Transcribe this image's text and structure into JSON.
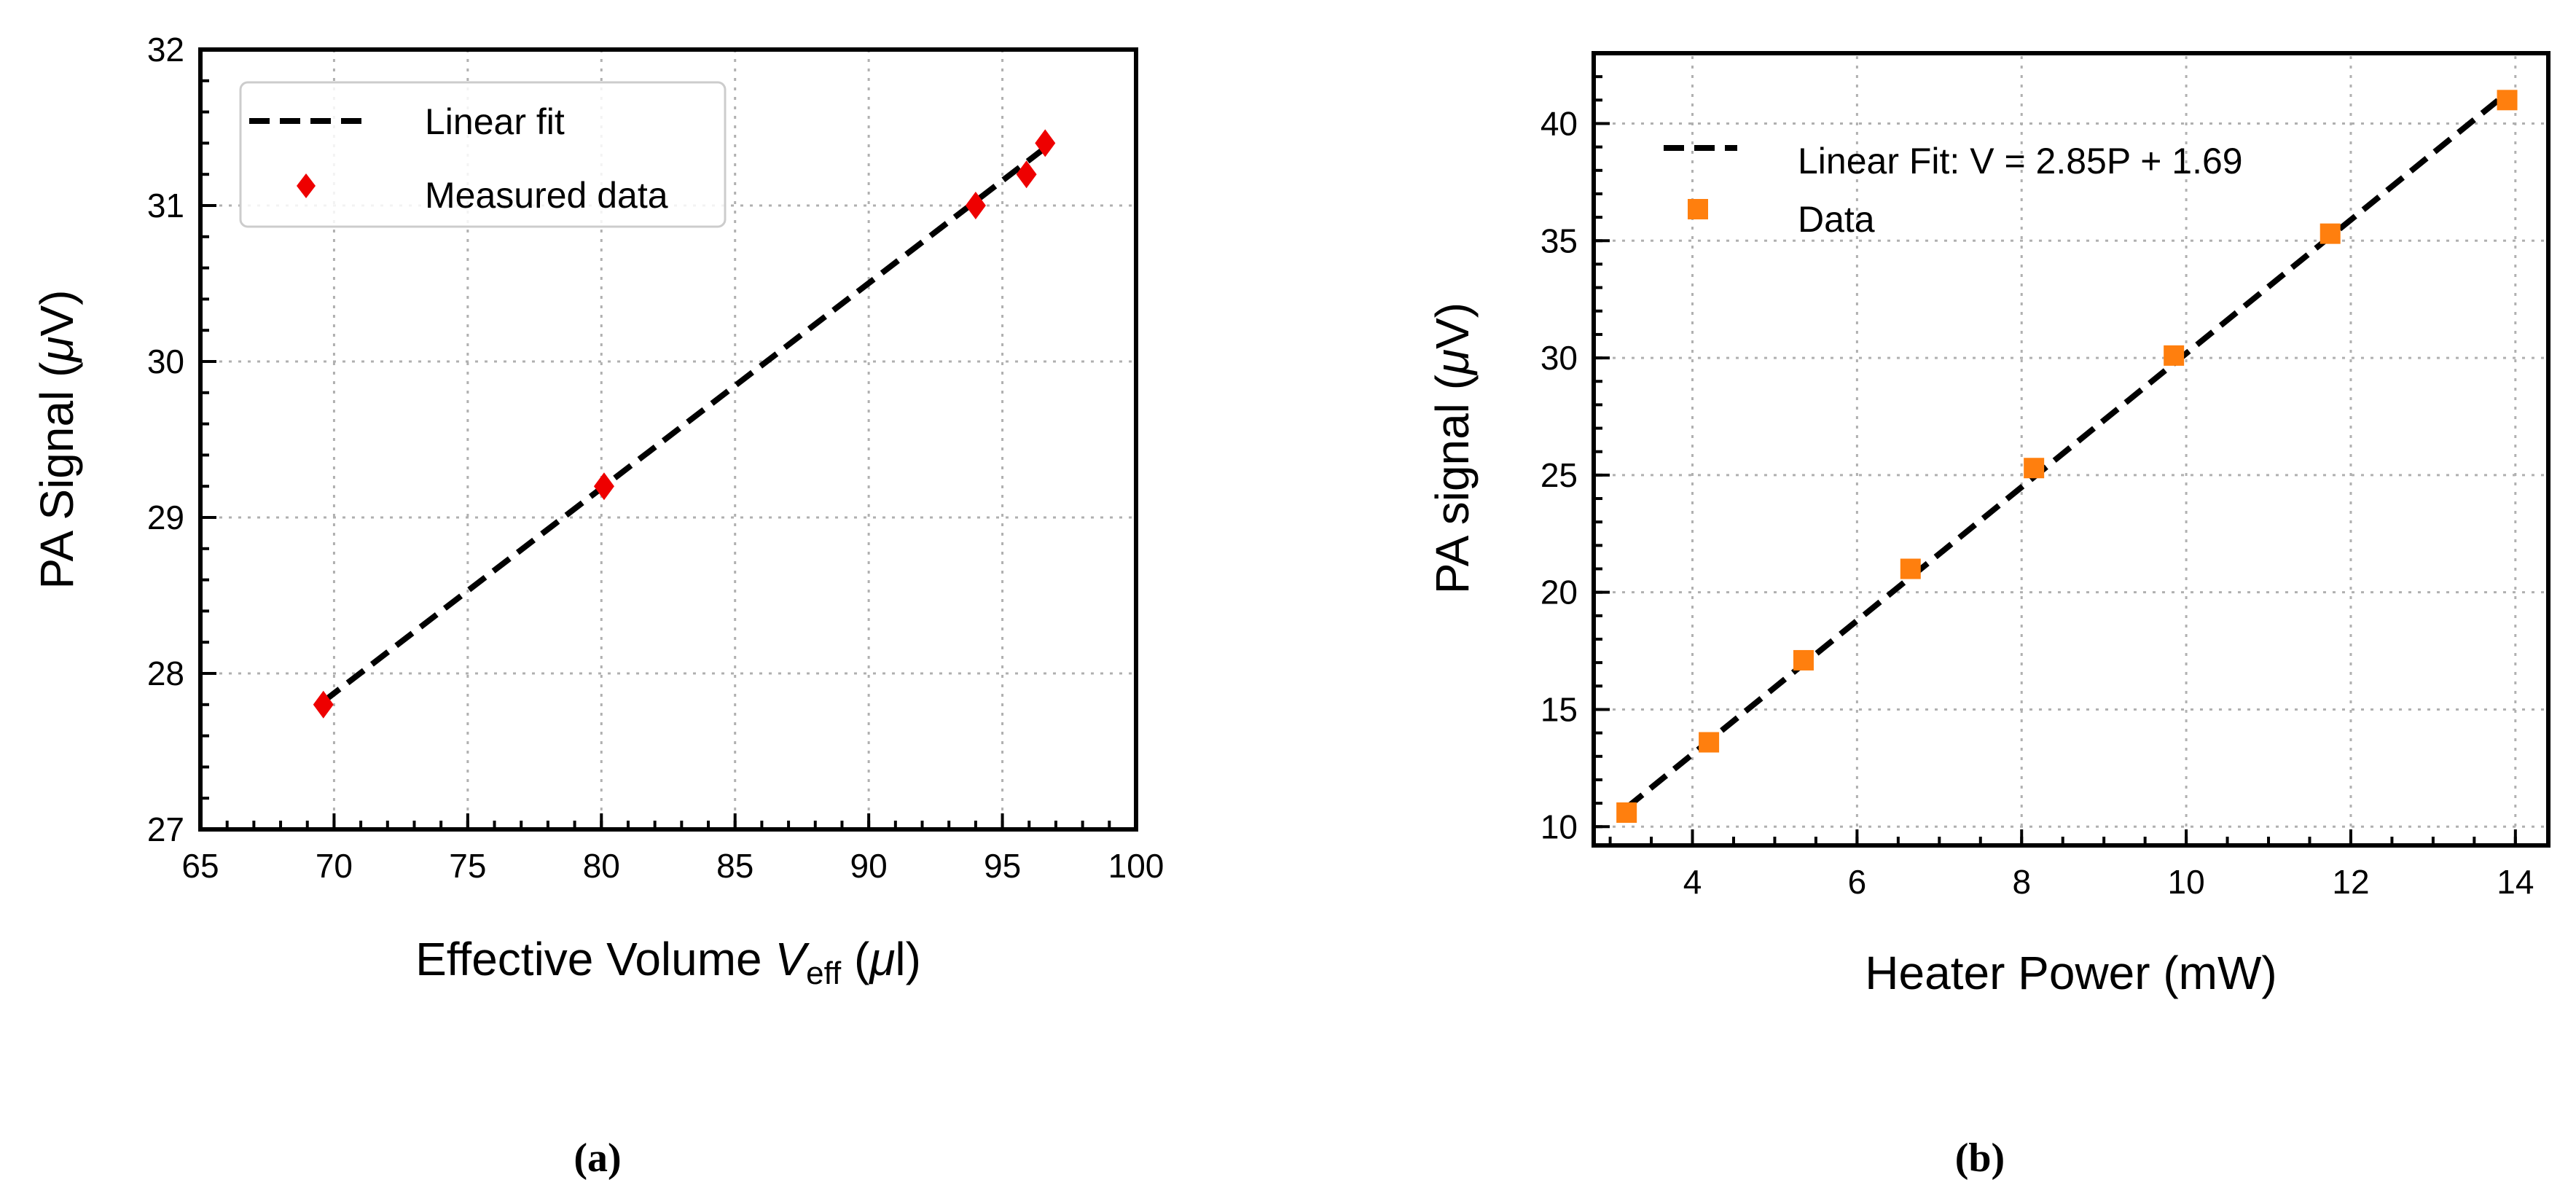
{
  "colors": {
    "fit_line": "#000000",
    "panel_a_marker": "#ee0000",
    "panel_b_marker": "#ff7f0e",
    "grid": "#b0b0b0"
  },
  "chart_data": [
    {
      "panel": "(a)",
      "type": "scatter",
      "caption": "(a)",
      "xlabel": "Effective Volume V_eff (μl)",
      "xlabel_parts": {
        "pre": "Effective Volume ",
        "var": "V",
        "sub": "eff",
        "post": " (",
        "mu": "μ",
        "unit": "l)"
      },
      "ylabel": "PA Signal (μV)",
      "ylabel_parts": {
        "pre": "PA Signal (",
        "mu": "μ",
        "post": "V)"
      },
      "xlim": [
        65,
        100
      ],
      "ylim": [
        27,
        32
      ],
      "xticks": [
        65,
        70,
        75,
        80,
        85,
        90,
        95,
        100
      ],
      "yticks": [
        27,
        28,
        29,
        30,
        31,
        32
      ],
      "x_minor_step": 1,
      "y_minor_step": 0.2,
      "grid": true,
      "legend_position": "top-left",
      "series": [
        {
          "name": "Linear fit",
          "kind": "line",
          "style": "dashed",
          "x": [
            69.6,
            96.6
          ],
          "y": [
            27.82,
            31.37
          ]
        },
        {
          "name": "Measured data",
          "kind": "scatter",
          "marker": "diamond",
          "x": [
            69.6,
            80.1,
            94.0,
            95.9,
            96.6
          ],
          "y": [
            27.8,
            29.2,
            31.0,
            31.2,
            31.4
          ]
        }
      ]
    },
    {
      "panel": "(b)",
      "type": "scatter",
      "caption": "(b)",
      "xlabel": "Heater Power (mW)",
      "ylabel": "PA signal (μV)",
      "ylabel_parts": {
        "pre": "PA signal (",
        "mu": "μ",
        "post": "V)"
      },
      "xlim": [
        2.8,
        14.4
      ],
      "ylim": [
        9.2,
        43.0
      ],
      "xticks": [
        4,
        6,
        8,
        10,
        12,
        14
      ],
      "yticks": [
        10,
        15,
        20,
        25,
        30,
        35,
        40
      ],
      "x_minor_step": 0.5,
      "y_minor_step": 1,
      "grid": true,
      "legend_position": "top-left",
      "series": [
        {
          "name": "Linear Fit: V = 2.85P + 1.69",
          "kind": "line",
          "style": "dashed",
          "slope": 2.85,
          "intercept": 1.69,
          "x": [
            3.2,
            13.9
          ]
        },
        {
          "name": "Data",
          "kind": "scatter",
          "marker": "square",
          "x": [
            3.2,
            4.2,
            5.35,
            6.65,
            8.15,
            9.85,
            11.75,
            13.9
          ],
          "y": [
            10.6,
            13.6,
            17.1,
            21.0,
            25.3,
            30.1,
            35.3,
            41.0
          ]
        }
      ]
    }
  ]
}
